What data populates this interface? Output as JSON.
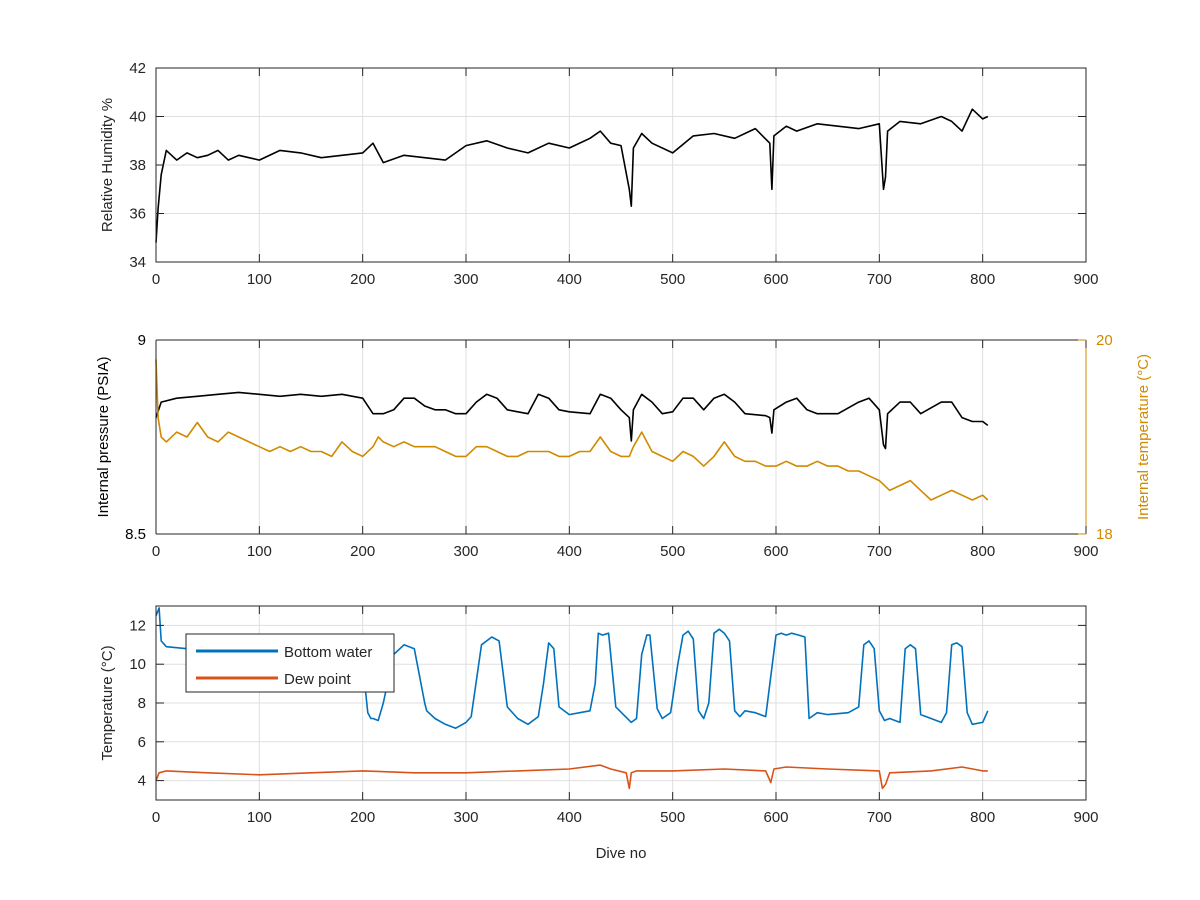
{
  "chart_data": [
    {
      "type": "line",
      "title": "",
      "xlabel": "",
      "ylabel": "Relative Humidity %",
      "xlim": [
        0,
        900
      ],
      "ylim": [
        34,
        42
      ],
      "xticks": [
        0,
        100,
        200,
        300,
        400,
        500,
        600,
        700,
        800,
        900
      ],
      "yticks": [
        34,
        36,
        38,
        40,
        42
      ],
      "grid": true,
      "series": [
        {
          "color": "#000000",
          "x": [
            0,
            2,
            5,
            10,
            20,
            30,
            40,
            50,
            60,
            70,
            80,
            90,
            100,
            120,
            140,
            160,
            180,
            200,
            210,
            220,
            240,
            260,
            280,
            300,
            320,
            340,
            360,
            380,
            400,
            420,
            430,
            440,
            450,
            458,
            460,
            462,
            470,
            480,
            500,
            520,
            540,
            560,
            580,
            594,
            596,
            598,
            610,
            620,
            640,
            660,
            680,
            700,
            704,
            706,
            708,
            720,
            740,
            760,
            770,
            780,
            790,
            800,
            805
          ],
          "y": [
            34.8,
            36.2,
            37.6,
            38.6,
            38.2,
            38.5,
            38.3,
            38.4,
            38.6,
            38.2,
            38.4,
            38.3,
            38.2,
            38.6,
            38.5,
            38.3,
            38.4,
            38.5,
            38.9,
            38.1,
            38.4,
            38.3,
            38.2,
            38.8,
            39.0,
            38.7,
            38.5,
            38.9,
            38.7,
            39.1,
            39.4,
            38.9,
            38.8,
            37.0,
            36.3,
            38.7,
            39.3,
            38.9,
            38.5,
            39.2,
            39.3,
            39.1,
            39.5,
            38.9,
            37.0,
            39.2,
            39.6,
            39.4,
            39.7,
            39.6,
            39.5,
            39.7,
            37.0,
            37.5,
            39.4,
            39.8,
            39.7,
            40.0,
            39.8,
            39.4,
            40.3,
            39.9,
            40.0
          ]
        }
      ]
    },
    {
      "type": "line",
      "title": "",
      "xlabel": "",
      "ylabel": "Internal pressure (PSIA)",
      "ylabel_right": "Internal temperature (°C)",
      "xlim": [
        0,
        900
      ],
      "ylim": [
        8.5,
        9
      ],
      "ylim_right": [
        18,
        20
      ],
      "xticks": [
        0,
        100,
        200,
        300,
        400,
        500,
        600,
        700,
        800,
        900
      ],
      "yticks": [
        8.5,
        9
      ],
      "yticks_right": [
        18,
        20
      ],
      "grid": true,
      "series": [
        {
          "axis": "left",
          "color": "#000000",
          "x": [
            0,
            5,
            20,
            40,
            60,
            80,
            100,
            120,
            140,
            160,
            180,
            200,
            210,
            220,
            230,
            240,
            250,
            260,
            270,
            280,
            290,
            300,
            310,
            320,
            330,
            340,
            350,
            360,
            370,
            380,
            390,
            400,
            420,
            430,
            440,
            450,
            458,
            460,
            462,
            470,
            480,
            490,
            500,
            510,
            520,
            530,
            540,
            550,
            560,
            570,
            590,
            594,
            596,
            598,
            610,
            620,
            630,
            640,
            660,
            680,
            690,
            700,
            704,
            706,
            708,
            720,
            730,
            740,
            760,
            770,
            780,
            790,
            800,
            805
          ],
          "y": [
            8.8,
            8.84,
            8.85,
            8.855,
            8.86,
            8.865,
            8.86,
            8.855,
            8.86,
            8.855,
            8.86,
            8.85,
            8.81,
            8.81,
            8.82,
            8.85,
            8.85,
            8.83,
            8.82,
            8.82,
            8.81,
            8.81,
            8.84,
            8.86,
            8.85,
            8.82,
            8.815,
            8.81,
            8.86,
            8.85,
            8.82,
            8.815,
            8.81,
            8.86,
            8.85,
            8.82,
            8.8,
            8.74,
            8.82,
            8.86,
            8.84,
            8.81,
            8.815,
            8.85,
            8.85,
            8.82,
            8.85,
            8.86,
            8.84,
            8.81,
            8.805,
            8.8,
            8.76,
            8.82,
            8.84,
            8.85,
            8.82,
            8.81,
            8.81,
            8.84,
            8.85,
            8.82,
            8.73,
            8.72,
            8.81,
            8.84,
            8.84,
            8.81,
            8.84,
            8.84,
            8.8,
            8.79,
            8.79,
            8.78
          ]
        },
        {
          "axis": "right",
          "color": "#d08a00",
          "x": [
            0,
            2,
            5,
            10,
            20,
            30,
            40,
            50,
            60,
            70,
            80,
            90,
            100,
            110,
            120,
            130,
            140,
            150,
            160,
            170,
            180,
            190,
            200,
            210,
            215,
            220,
            230,
            240,
            250,
            260,
            270,
            280,
            290,
            300,
            310,
            320,
            330,
            340,
            350,
            360,
            370,
            380,
            390,
            400,
            410,
            420,
            430,
            440,
            450,
            458,
            460,
            462,
            470,
            480,
            490,
            500,
            510,
            520,
            530,
            540,
            550,
            560,
            570,
            580,
            590,
            600,
            610,
            620,
            630,
            640,
            650,
            660,
            670,
            680,
            690,
            700,
            710,
            720,
            730,
            740,
            750,
            760,
            770,
            780,
            790,
            800,
            805
          ],
          "y": [
            19.8,
            19.2,
            19.0,
            18.95,
            19.05,
            19.0,
            19.15,
            19.0,
            18.95,
            19.05,
            19.0,
            18.95,
            18.9,
            18.85,
            18.9,
            18.85,
            18.9,
            18.85,
            18.85,
            18.8,
            18.95,
            18.85,
            18.8,
            18.9,
            19.0,
            18.95,
            18.9,
            18.95,
            18.9,
            18.9,
            18.9,
            18.85,
            18.8,
            18.8,
            18.9,
            18.9,
            18.85,
            18.8,
            18.8,
            18.85,
            18.85,
            18.85,
            18.8,
            18.8,
            18.85,
            18.85,
            19.0,
            18.85,
            18.8,
            18.8,
            18.85,
            18.9,
            19.05,
            18.85,
            18.8,
            18.75,
            18.85,
            18.8,
            18.7,
            18.8,
            18.95,
            18.8,
            18.75,
            18.75,
            18.7,
            18.7,
            18.75,
            18.7,
            18.7,
            18.75,
            18.7,
            18.7,
            18.65,
            18.65,
            18.6,
            18.55,
            18.45,
            18.5,
            18.55,
            18.45,
            18.35,
            18.4,
            18.45,
            18.4,
            18.35,
            18.4,
            18.35
          ]
        }
      ]
    },
    {
      "type": "line",
      "title": "",
      "xlabel": "Dive no",
      "ylabel": "Temperature (°C)",
      "xlim": [
        0,
        900
      ],
      "ylim": [
        3,
        13
      ],
      "xticks": [
        0,
        100,
        200,
        300,
        400,
        500,
        600,
        700,
        800,
        900
      ],
      "yticks": [
        4,
        6,
        8,
        10,
        12
      ],
      "grid": true,
      "legend_position": "top-left",
      "series": [
        {
          "name": "Bottom water",
          "color": "#0072bd",
          "x": [
            0,
            3,
            5,
            10,
            30,
            50,
            100,
            150,
            190,
            200,
            205,
            208,
            210,
            215,
            220,
            230,
            240,
            250,
            260,
            262,
            270,
            280,
            290,
            300,
            305,
            315,
            325,
            332,
            340,
            350,
            360,
            370,
            375,
            380,
            385,
            390,
            400,
            410,
            420,
            425,
            428,
            432,
            438,
            445,
            460,
            465,
            470,
            475,
            478,
            485,
            490,
            498,
            505,
            510,
            515,
            520,
            525,
            530,
            535,
            540,
            545,
            550,
            555,
            560,
            565,
            570,
            580,
            590,
            600,
            605,
            610,
            615,
            622,
            628,
            632,
            640,
            650,
            670,
            680,
            685,
            690,
            695,
            700,
            705,
            710,
            720,
            725,
            730,
            735,
            740,
            750,
            760,
            765,
            770,
            775,
            780,
            785,
            790,
            800,
            805
          ],
          "y": [
            12.5,
            12.9,
            11.2,
            10.9,
            10.8,
            10.7,
            10.6,
            10.5,
            10.4,
            10.0,
            7.5,
            7.2,
            7.2,
            7.1,
            8.0,
            10.5,
            11.0,
            10.8,
            8.0,
            7.6,
            7.2,
            6.9,
            6.7,
            7.0,
            7.3,
            11.0,
            11.4,
            11.2,
            7.8,
            7.2,
            6.9,
            7.3,
            9.0,
            11.1,
            10.8,
            7.8,
            7.4,
            7.5,
            7.6,
            9.0,
            11.6,
            11.5,
            11.6,
            7.8,
            7.0,
            7.2,
            10.5,
            11.5,
            11.5,
            7.7,
            7.2,
            7.5,
            10.0,
            11.5,
            11.7,
            11.3,
            7.6,
            7.2,
            8.0,
            11.6,
            11.8,
            11.6,
            11.2,
            7.6,
            7.3,
            7.6,
            7.5,
            7.3,
            11.5,
            11.6,
            11.5,
            11.6,
            11.5,
            11.4,
            7.2,
            7.5,
            7.4,
            7.5,
            7.8,
            11.0,
            11.2,
            10.8,
            7.6,
            7.1,
            7.2,
            7.0,
            10.8,
            11.0,
            10.8,
            7.4,
            7.2,
            7.0,
            7.5,
            11.0,
            11.1,
            10.9,
            7.5,
            6.9,
            7.0,
            7.6
          ],
          "min": null
        },
        {
          "name": "Dew point",
          "color": "#d95319",
          "x": [
            0,
            3,
            10,
            50,
            100,
            150,
            200,
            250,
            300,
            350,
            400,
            430,
            440,
            455,
            458,
            460,
            465,
            500,
            550,
            590,
            595,
            598,
            610,
            650,
            700,
            703,
            706,
            710,
            750,
            780,
            800,
            805
          ],
          "y": [
            4.0,
            4.4,
            4.5,
            4.4,
            4.3,
            4.4,
            4.5,
            4.4,
            4.4,
            4.5,
            4.6,
            4.8,
            4.6,
            4.4,
            3.6,
            4.4,
            4.5,
            4.5,
            4.6,
            4.5,
            3.9,
            4.6,
            4.7,
            4.6,
            4.5,
            3.6,
            3.8,
            4.4,
            4.5,
            4.7,
            4.5,
            4.5
          ]
        }
      ]
    }
  ],
  "legend": {
    "bottom_water": "Bottom water",
    "dew_point": "Dew point"
  },
  "axes": {
    "x_tick_labels": [
      "0",
      "100",
      "200",
      "300",
      "400",
      "500",
      "600",
      "700",
      "800",
      "900"
    ],
    "p1_y_tick_labels": [
      "34",
      "36",
      "38",
      "40",
      "42"
    ],
    "p2_y_tick_labels": [
      "8.5",
      "9"
    ],
    "p2_yr_tick_labels": [
      "18",
      "20"
    ],
    "p3_y_tick_labels": [
      "4",
      "6",
      "8",
      "10",
      "12"
    ]
  }
}
